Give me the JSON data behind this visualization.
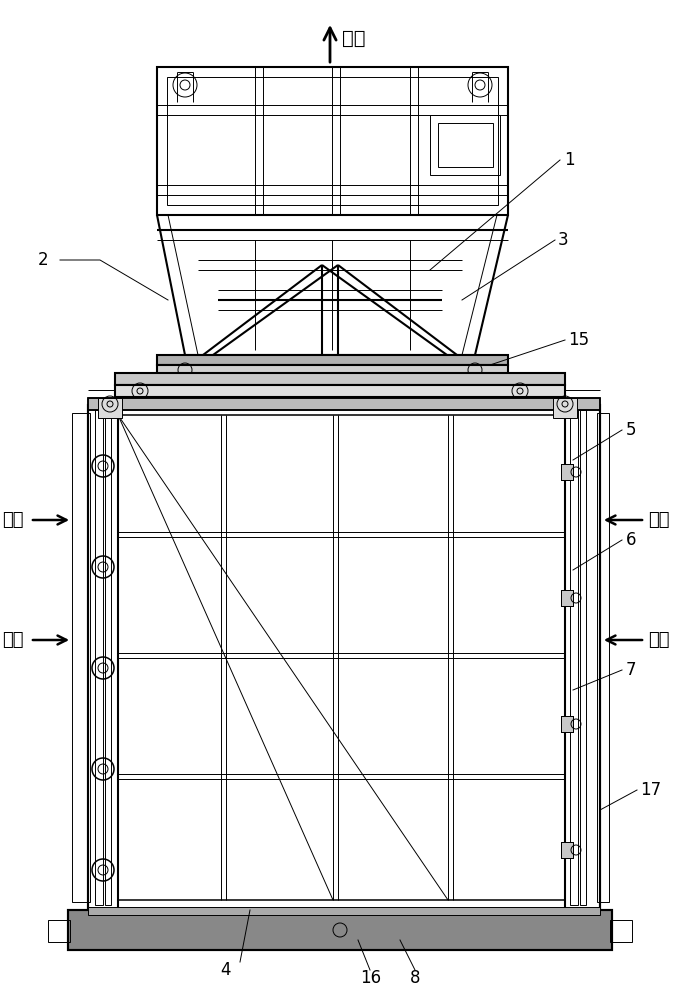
{
  "bg_color": "#ffffff",
  "line_color": "#000000",
  "lw_main": 1.5,
  "lw_thin": 0.7,
  "lw_medium": 1.1,
  "labels": {
    "top_arrow": "出风",
    "left_top": "进风",
    "left_bottom": "进风",
    "right_top": "进风",
    "right_bottom": "进风"
  },
  "font_size": 13,
  "label_font_size": 12
}
